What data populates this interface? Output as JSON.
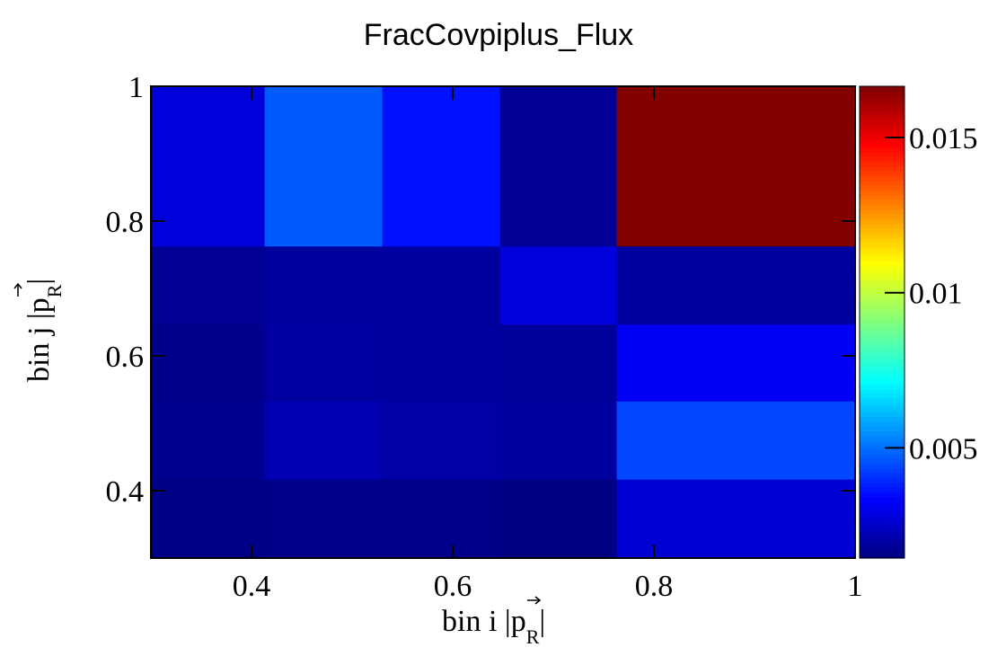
{
  "chart_data": {
    "type": "heatmap",
    "title": "FracCovpiplus_Flux",
    "xlabel": {
      "prefix": "bin i |",
      "vector": "p",
      "subscript": "R",
      "suffix": "|"
    },
    "ylabel": {
      "prefix": "bin j |",
      "vector": "p",
      "subscript": "R",
      "suffix": "|"
    },
    "x_edges": [
      0.3,
      0.413,
      0.53,
      0.647,
      0.763,
      1.0
    ],
    "y_edges": [
      0.3,
      0.417,
      0.533,
      0.647,
      0.763,
      1.0
    ],
    "values": [
      [
        0.00155,
        0.0016,
        0.0016,
        0.0015,
        0.0027
      ],
      [
        0.0017,
        0.0022,
        0.002,
        0.0019,
        0.0044
      ],
      [
        0.00165,
        0.00195,
        0.0019,
        0.00185,
        0.0032
      ],
      [
        0.00175,
        0.0019,
        0.0019,
        0.0028,
        0.0019
      ],
      [
        0.0028,
        0.0047,
        0.0036,
        0.00175,
        0.0166
      ]
    ],
    "xlim": [
      0.3,
      1.0
    ],
    "ylim": [
      0.3,
      1.0
    ],
    "x_ticks": [
      {
        "value": 0.4,
        "label": "0.4"
      },
      {
        "value": 0.6,
        "label": "0.6"
      },
      {
        "value": 0.8,
        "label": "0.8"
      },
      {
        "value": 1.0,
        "label": "1"
      }
    ],
    "y_ticks": [
      {
        "value": 0.4,
        "label": "0.4"
      },
      {
        "value": 0.6,
        "label": "0.6"
      },
      {
        "value": 0.8,
        "label": "0.8"
      },
      {
        "value": 1.0,
        "label": "1"
      }
    ],
    "colorbar": {
      "range": [
        0.00145,
        0.01665
      ],
      "colormap": "jet",
      "ticks": [
        {
          "value": 0.005,
          "label": "0.005"
        },
        {
          "value": 0.01,
          "label": "0.01"
        },
        {
          "value": 0.015,
          "label": "0.015"
        }
      ]
    },
    "grid": false
  }
}
